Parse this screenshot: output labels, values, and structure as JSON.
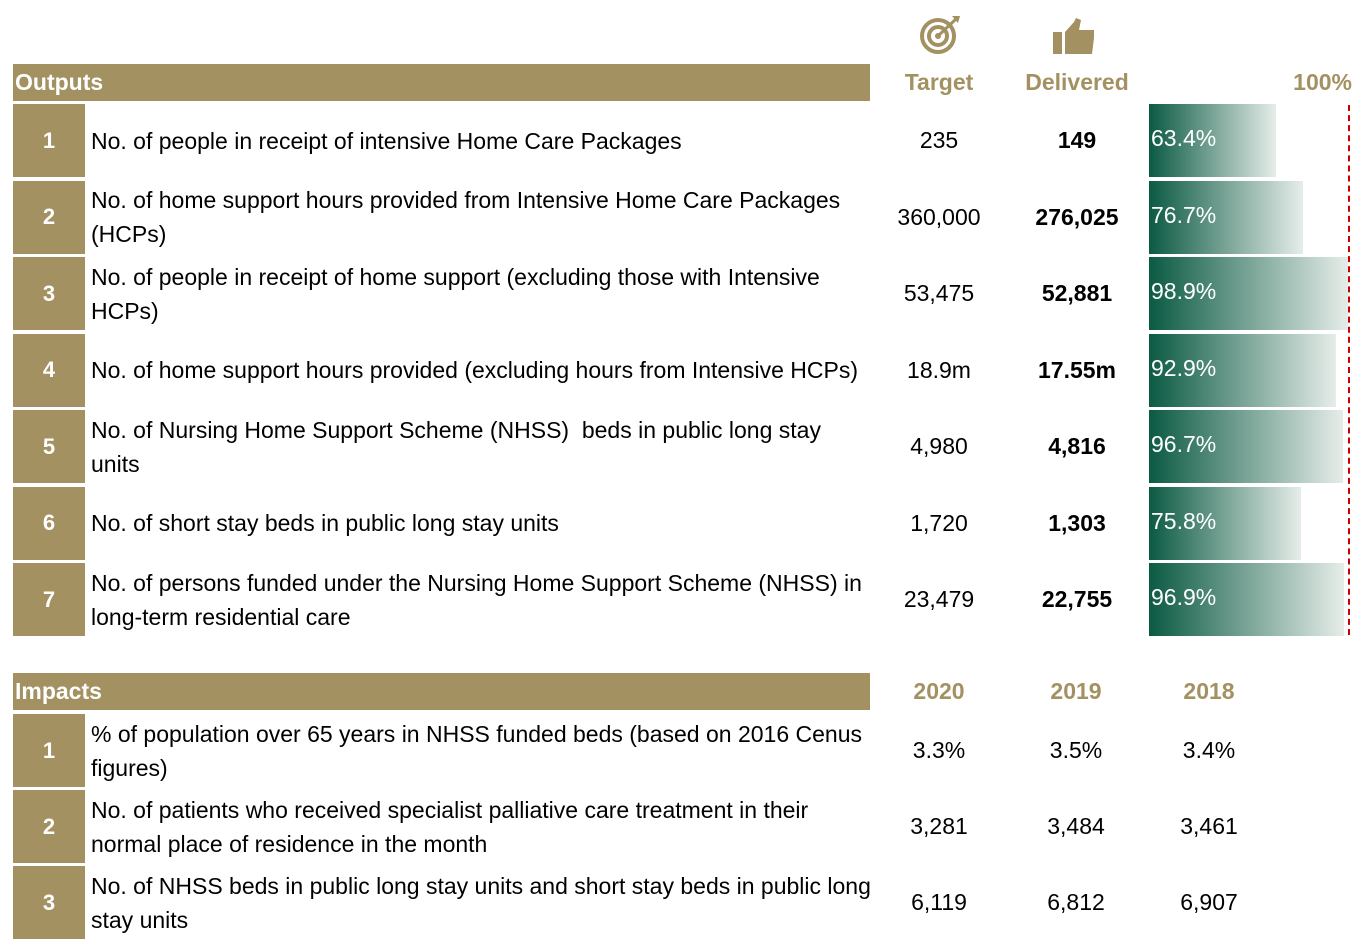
{
  "outputs": {
    "title": "Outputs",
    "target_label": "Target",
    "delivered_label": "Delivered",
    "scale_label": {
      "value": 100,
      "label": "100%"
    },
    "rows": [
      {
        "num": "1",
        "text": "No. of people in receipt of intensive Home Care Packages",
        "target": "235",
        "delivered": "149",
        "pct": {
          "value": 63.4,
          "label": "63.4%"
        }
      },
      {
        "num": "2",
        "text": "No. of home support hours provided from Intensive Home Care Packages (HCPs)",
        "target": "360,000",
        "delivered": "276,025",
        "pct": {
          "value": 76.7,
          "label": "76.7%"
        }
      },
      {
        "num": "3",
        "text": "No. of people in receipt of home support (excluding those with Intensive HCPs)",
        "target": "53,475",
        "delivered": "52,881",
        "pct": {
          "value": 98.9,
          "label": "98.9%"
        }
      },
      {
        "num": "4",
        "text": "No. of home support hours provided (excluding hours from Intensive HCPs)",
        "target": "18.9m",
        "delivered": "17.55m",
        "pct": {
          "value": 92.9,
          "label": "92.9%"
        }
      },
      {
        "num": "5",
        "text": "No. of Nursing Home Support Scheme (NHSS)  beds in public long stay units",
        "target": "4,980",
        "delivered": "4,816",
        "pct": {
          "value": 96.7,
          "label": "96.7%"
        }
      },
      {
        "num": "6",
        "text": "No. of short stay beds in public long stay units",
        "target": "1,720",
        "delivered": "1,303",
        "pct": {
          "value": 75.8,
          "label": "75.8%"
        }
      },
      {
        "num": "7",
        "text": "No. of persons funded under the Nursing Home Support Scheme (NHSS) in long-term residential care",
        "target": "23,479",
        "delivered": "22,755",
        "pct": {
          "value": 96.9,
          "label": "96.9%"
        }
      }
    ]
  },
  "impacts": {
    "title": "Impacts",
    "columns": [
      "2020",
      "2019",
      "2018"
    ],
    "rows": [
      {
        "num": "1",
        "text": "% of population over 65 years in NHSS funded beds (based on 2016 Cenus figures)",
        "values": [
          "3.3%",
          "3.5%",
          "3.4%"
        ]
      },
      {
        "num": "2",
        "text": "No. of patients who received specialist palliative care treatment in their normal place of residence in the month",
        "values": [
          "3,281",
          "3,484",
          "3,461"
        ]
      },
      {
        "num": "3",
        "text": "No. of NHSS beds in public long stay units and short stay beds in public long stay units",
        "values": [
          "6,119",
          "6,812",
          "6,907"
        ]
      }
    ]
  }
}
